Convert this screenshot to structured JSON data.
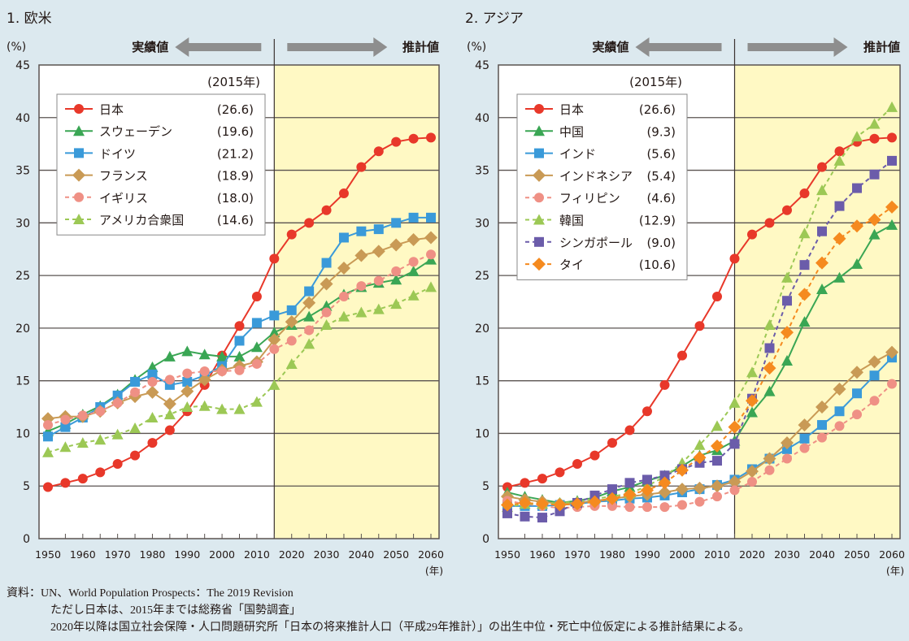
{
  "footnote": {
    "line1": "資料：UN、World Population Prospects：The 2019 Revision",
    "line2": "ただし日本は、2015年までは総務省「国勢調査」",
    "line3": "2020年以降は国立社会保障・人口問題研究所「日本の将来推計人口（平成29年推計）」の出生中位・死亡中位仮定による推計結果による。"
  },
  "chart_data": [
    {
      "type": "line",
      "title": "1. 欧米",
      "ylabel": "(%)",
      "xlabel": "(年)",
      "actual_label": "実績値",
      "projection_label": "推計値",
      "legend_header": "(2015年)",
      "legend_position": "top-left",
      "projection_start": 2015,
      "ylim": [
        0,
        45
      ],
      "yticks": [
        0,
        5,
        10,
        15,
        20,
        25,
        30,
        35,
        40,
        45
      ],
      "xticks": [
        1950,
        1960,
        1970,
        1980,
        1990,
        2000,
        2010,
        2020,
        2030,
        2040,
        2050,
        2060
      ],
      "grid": true,
      "x": [
        1950,
        1955,
        1960,
        1965,
        1970,
        1975,
        1980,
        1985,
        1990,
        1995,
        2000,
        2005,
        2010,
        2015,
        2020,
        2025,
        2030,
        2035,
        2040,
        2045,
        2050,
        2055,
        2060
      ],
      "series": [
        {
          "name": "日本",
          "value_2015": "(26.6)",
          "color": "#e8382a",
          "marker": "circle",
          "dashed": false,
          "values": [
            4.9,
            5.3,
            5.7,
            6.3,
            7.1,
            7.9,
            9.1,
            10.3,
            12.1,
            14.6,
            17.4,
            20.2,
            23.0,
            26.6,
            28.9,
            30.0,
            31.2,
            32.8,
            35.3,
            36.8,
            37.7,
            38.0,
            38.1
          ]
        },
        {
          "name": "スウェーデン",
          "value_2015": "(19.6)",
          "color": "#3aa654",
          "marker": "triangle",
          "dashed": false,
          "values": [
            10.2,
            10.9,
            11.8,
            12.6,
            13.7,
            15.1,
            16.3,
            17.3,
            17.8,
            17.5,
            17.3,
            17.3,
            18.2,
            19.6,
            20.3,
            21.1,
            22.1,
            23.2,
            23.9,
            24.3,
            24.6,
            25.4,
            26.5
          ]
        },
        {
          "name": "ドイツ",
          "value_2015": "(21.2)",
          "color": "#3a9ad9",
          "marker": "square",
          "dashed": false,
          "values": [
            9.7,
            10.6,
            11.5,
            12.5,
            13.6,
            14.9,
            15.6,
            14.6,
            14.9,
            15.5,
            16.4,
            18.8,
            20.5,
            21.2,
            21.7,
            23.5,
            26.2,
            28.6,
            29.2,
            29.4,
            30.0,
            30.5,
            30.5
          ]
        },
        {
          "name": "フランス",
          "value_2015": "(18.9)",
          "color": "#c99a55",
          "marker": "diamond",
          "dashed": false,
          "values": [
            11.4,
            11.6,
            11.6,
            12.1,
            12.9,
            13.5,
            13.9,
            12.8,
            14.0,
            15.1,
            16.0,
            16.4,
            16.8,
            18.9,
            20.6,
            22.4,
            24.2,
            25.7,
            26.9,
            27.3,
            27.9,
            28.4,
            28.6
          ]
        },
        {
          "name": "イギリス",
          "value_2015": "(18.0)",
          "color": "#ef9085",
          "marker": "circle",
          "dashed": true,
          "values": [
            10.8,
            11.3,
            11.7,
            12.1,
            12.9,
            13.9,
            14.9,
            15.1,
            15.7,
            15.9,
            15.9,
            16.0,
            16.6,
            18.0,
            18.8,
            19.8,
            21.5,
            23.0,
            24.0,
            24.5,
            25.4,
            26.3,
            27.0
          ]
        },
        {
          "name": "アメリカ合衆国",
          "value_2015": "(14.6)",
          "color": "#9cc855",
          "marker": "triangle",
          "dashed": true,
          "values": [
            8.2,
            8.7,
            9.1,
            9.4,
            9.9,
            10.5,
            11.5,
            11.8,
            12.5,
            12.6,
            12.3,
            12.3,
            13.0,
            14.6,
            16.6,
            18.5,
            20.3,
            21.1,
            21.5,
            21.8,
            22.3,
            23.1,
            23.9
          ]
        }
      ]
    },
    {
      "type": "line",
      "title": "2. アジア",
      "ylabel": "(%)",
      "xlabel": "(年)",
      "actual_label": "実績値",
      "projection_label": "推計値",
      "legend_header": "(2015年)",
      "legend_position": "top-left",
      "projection_start": 2015,
      "ylim": [
        0,
        45
      ],
      "yticks": [
        0,
        5,
        10,
        15,
        20,
        25,
        30,
        35,
        40,
        45
      ],
      "xticks": [
        1950,
        1960,
        1970,
        1980,
        1990,
        2000,
        2010,
        2020,
        2030,
        2040,
        2050,
        2060
      ],
      "grid": true,
      "x": [
        1950,
        1955,
        1960,
        1965,
        1970,
        1975,
        1980,
        1985,
        1990,
        1995,
        2000,
        2005,
        2010,
        2015,
        2020,
        2025,
        2030,
        2035,
        2040,
        2045,
        2050,
        2055,
        2060
      ],
      "series": [
        {
          "name": "日本",
          "value_2015": "(26.6)",
          "color": "#e8382a",
          "marker": "circle",
          "dashed": false,
          "values": [
            4.9,
            5.3,
            5.7,
            6.3,
            7.1,
            7.9,
            9.1,
            10.3,
            12.1,
            14.6,
            17.4,
            20.2,
            23.0,
            26.6,
            28.9,
            30.0,
            31.2,
            32.8,
            35.3,
            36.8,
            37.7,
            38.0,
            38.1
          ]
        },
        {
          "name": "中国",
          "value_2015": "(9.3)",
          "color": "#3aa654",
          "marker": "triangle",
          "dashed": false,
          "values": [
            4.4,
            4.0,
            3.7,
            3.4,
            3.6,
            3.9,
            4.5,
            4.9,
            5.5,
            6.0,
            6.9,
            7.9,
            8.4,
            9.3,
            12.0,
            14.0,
            16.9,
            20.6,
            23.7,
            24.8,
            26.1,
            28.9,
            29.8
          ]
        },
        {
          "name": "インド",
          "value_2015": "(5.6)",
          "color": "#3a9ad9",
          "marker": "square",
          "dashed": false,
          "values": [
            3.1,
            3.1,
            3.1,
            3.2,
            3.3,
            3.5,
            3.6,
            3.8,
            3.9,
            4.1,
            4.4,
            4.7,
            5.1,
            5.6,
            6.6,
            7.6,
            8.5,
            9.5,
            10.8,
            12.1,
            13.8,
            15.5,
            17.2
          ]
        },
        {
          "name": "インドネシア",
          "value_2015": "(5.4)",
          "color": "#c99a55",
          "marker": "diamond",
          "dashed": false,
          "values": [
            4.0,
            3.7,
            3.5,
            3.3,
            3.4,
            3.6,
            3.8,
            4.0,
            4.2,
            4.4,
            4.7,
            4.8,
            5.0,
            5.4,
            6.4,
            7.6,
            9.1,
            10.8,
            12.5,
            14.2,
            15.8,
            16.8,
            17.7
          ]
        },
        {
          "name": "フィリピン",
          "value_2015": "(4.6)",
          "color": "#ef9085",
          "marker": "circle",
          "dashed": true,
          "values": [
            3.6,
            3.3,
            3.1,
            2.9,
            3.0,
            3.1,
            3.1,
            3.0,
            3.0,
            3.0,
            3.2,
            3.5,
            4.0,
            4.6,
            5.4,
            6.5,
            7.6,
            8.6,
            9.6,
            10.7,
            11.8,
            13.1,
            14.7
          ]
        },
        {
          "name": "韓国",
          "value_2015": "(12.9)",
          "color": "#9cc855",
          "marker": "triangle",
          "dashed": true,
          "values": [
            3.0,
            3.3,
            3.3,
            3.4,
            3.5,
            3.8,
            4.0,
            4.3,
            5.0,
            5.9,
            7.2,
            8.9,
            10.7,
            12.9,
            15.8,
            20.3,
            24.8,
            29.0,
            33.1,
            35.9,
            38.2,
            39.4,
            41.0
          ]
        },
        {
          "name": "シンガポール",
          "value_2015": "(9.0)",
          "color": "#6b5caa",
          "marker": "square",
          "dashed": true,
          "values": [
            2.4,
            2.1,
            2.0,
            2.6,
            3.4,
            4.1,
            4.7,
            5.3,
            5.6,
            6.0,
            6.6,
            7.2,
            7.4,
            9.0,
            13.3,
            18.1,
            22.6,
            26.0,
            29.2,
            31.6,
            33.3,
            34.6,
            35.9
          ]
        },
        {
          "name": "タイ",
          "value_2015": "(10.6)",
          "color": "#f58a1f",
          "marker": "diamond",
          "dashed": true,
          "values": [
            3.2,
            3.4,
            3.3,
            3.2,
            3.3,
            3.5,
            3.8,
            4.2,
            4.6,
            5.3,
            6.5,
            7.7,
            8.8,
            10.6,
            13.1,
            16.2,
            19.6,
            23.2,
            26.2,
            28.5,
            29.7,
            30.3,
            31.5
          ]
        }
      ]
    }
  ]
}
